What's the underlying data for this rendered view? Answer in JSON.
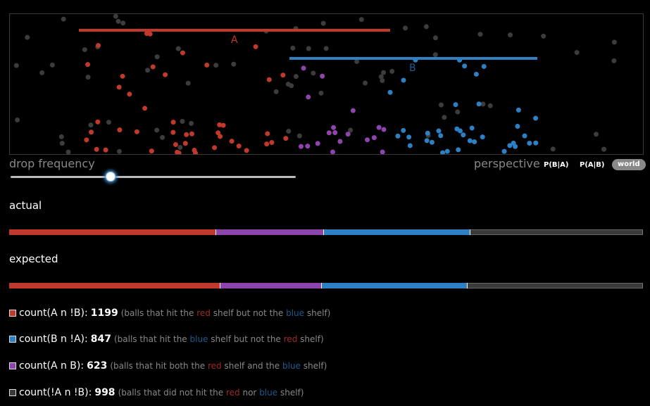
{
  "simulation": {
    "shelves": [
      {
        "name": "A",
        "color": "#c0392b"
      },
      {
        "name": "B",
        "color": "#2f7fc1"
      }
    ]
  },
  "controls": {
    "drop_frequency_label": "drop frequency",
    "drop_frequency_value": 0.35,
    "perspective_label": "perspective",
    "perspective_options": [
      "P(B|A)",
      "P(A|B)",
      "world"
    ],
    "perspective_selected": "world"
  },
  "actual": {
    "title": "actual",
    "fractions": [
      0.327,
      0.17,
      0.231,
      0.272
    ]
  },
  "expected": {
    "title": "expected",
    "fractions": [
      0.333,
      0.16,
      0.23,
      0.277
    ]
  },
  "colors": {
    "red": "#c0392b",
    "purple": "#8e44ad",
    "blue": "#2e80c4",
    "gray": "#3a3a3a"
  },
  "legend": [
    {
      "label": "count(A n !B):",
      "value": "1199",
      "desc_pre": "(balls that hit the",
      "word1": "red",
      "desc_mid": "shelf but not the",
      "word2": "blue",
      "desc_post": "shelf)"
    },
    {
      "label": "count(B n !A):",
      "value": "847",
      "desc_pre": "(balls that hit the",
      "word1": "blue",
      "desc_mid": "shelf but not the",
      "word2": "red",
      "desc_post": "shelf)"
    },
    {
      "label": "count(A n B):",
      "value": "623",
      "desc_pre": "(balls that hit both the",
      "word1": "red",
      "desc_mid": "shelf and the",
      "word2": "blue",
      "desc_post": "shelf)"
    },
    {
      "label": "count(!A n !B):",
      "value": "998",
      "desc_pre": "(balls that did not hit the",
      "word1": "red",
      "desc_mid": "nor",
      "word2": "blue",
      "desc_post": "shelf)"
    }
  ]
}
